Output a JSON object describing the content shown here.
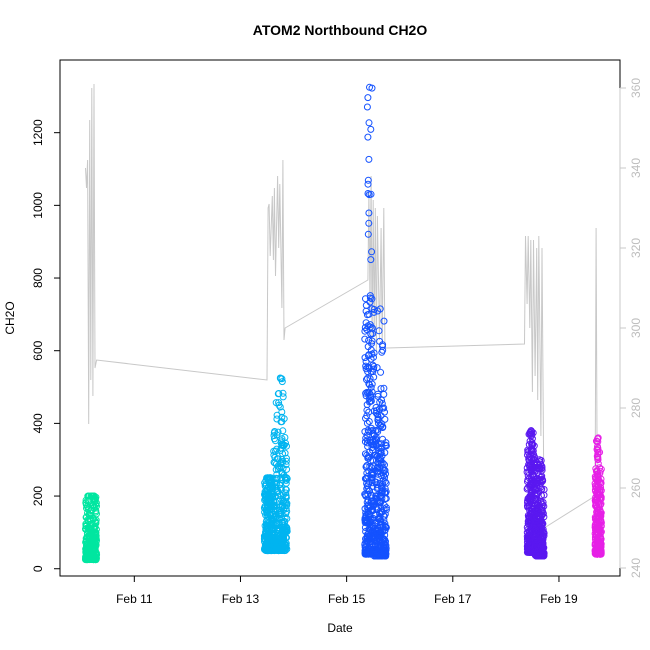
{
  "chart_data": {
    "type": "scatter",
    "title": "ATOM2 Northbound CH2O",
    "xlabel": "Date",
    "ylabel": "CH2O",
    "x_ticks": [
      "Feb 11",
      "Feb 13",
      "Feb 15",
      "Feb 17",
      "Feb 19"
    ],
    "x_tick_values": [
      11,
      13,
      15,
      17,
      19
    ],
    "xlim": [
      9.6,
      20.15
    ],
    "y_ticks": [
      0,
      200,
      400,
      600,
      800,
      1000,
      1200
    ],
    "ylim": [
      -20,
      1400
    ],
    "y2_ticks": [
      240,
      260,
      280,
      300,
      320,
      340,
      360
    ],
    "y2lim": [
      238,
      367
    ],
    "y2_color": "#c8c8c8",
    "grid": false,
    "series": [
      {
        "color": "#00e6a0",
        "segments": [
          {
            "x": [
              10.08,
              10.29
            ],
            "y_low": 25,
            "y_high": 200,
            "y_peak": 200
          }
        ]
      },
      {
        "color": "#00b4f0",
        "segments": [
          {
            "x": [
              13.45,
              13.62
            ],
            "y_low": 50,
            "y_high": 250,
            "y_peak": 250
          },
          {
            "x": [
              13.62,
              13.88
            ],
            "y_low": 50,
            "y_high": 380,
            "y_peak": 525
          }
        ]
      },
      {
        "color": "#1452ff",
        "segments": [
          {
            "x": [
              15.34,
              15.52
            ],
            "y_low": 40,
            "y_high": 750,
            "y_peak": 1325
          },
          {
            "x": [
              15.52,
              15.75
            ],
            "y_low": 35,
            "y_high": 450,
            "y_peak": 715
          }
        ]
      },
      {
        "color": "#5a18f0",
        "segments": [
          {
            "x": [
              18.4,
              18.55
            ],
            "y_low": 45,
            "y_high": 340,
            "y_peak": 380
          },
          {
            "x": [
              18.55,
              18.72
            ],
            "y_low": 35,
            "y_high": 250,
            "y_peak": 300
          }
        ]
      },
      {
        "color": "#e620e6",
        "segments": [
          {
            "x": [
              19.68,
              19.8
            ],
            "y_low": 40,
            "y_high": 280,
            "y_peak": 360
          }
        ]
      }
    ],
    "altitude_line": {
      "color": "#c8c8c8",
      "axis": "right",
      "points": [
        [
          10.08,
          340
        ],
        [
          10.1,
          335
        ],
        [
          10.12,
          342
        ],
        [
          10.14,
          276
        ],
        [
          10.16,
          352
        ],
        [
          10.18,
          287
        ],
        [
          10.2,
          360
        ],
        [
          10.22,
          283
        ],
        [
          10.24,
          361
        ],
        [
          10.26,
          290
        ],
        [
          10.29,
          292
        ],
        [
          13.5,
          287
        ],
        [
          13.52,
          330
        ],
        [
          13.54,
          331
        ],
        [
          13.56,
          318
        ],
        [
          13.6,
          333
        ],
        [
          13.62,
          317
        ],
        [
          13.64,
          335
        ],
        [
          13.66,
          313
        ],
        [
          13.7,
          338
        ],
        [
          13.72,
          320
        ],
        [
          13.74,
          336
        ],
        [
          13.78,
          305
        ],
        [
          13.8,
          342
        ],
        [
          13.82,
          297
        ],
        [
          13.84,
          300
        ],
        [
          15.4,
          312
        ],
        [
          15.42,
          334
        ],
        [
          15.44,
          305
        ],
        [
          15.46,
          338
        ],
        [
          15.48,
          296
        ],
        [
          15.5,
          332
        ],
        [
          15.52,
          298
        ],
        [
          15.54,
          330
        ],
        [
          15.56,
          294
        ],
        [
          15.58,
          328
        ],
        [
          15.62,
          297
        ],
        [
          15.65,
          325
        ],
        [
          15.67,
          296
        ],
        [
          15.7,
          330
        ],
        [
          15.72,
          295
        ],
        [
          15.76,
          295
        ],
        [
          18.35,
          296
        ],
        [
          18.37,
          323
        ],
        [
          18.4,
          306
        ],
        [
          18.42,
          323
        ],
        [
          18.45,
          300
        ],
        [
          18.47,
          322
        ],
        [
          18.5,
          284
        ],
        [
          18.52,
          322
        ],
        [
          18.55,
          288
        ],
        [
          18.58,
          320
        ],
        [
          18.6,
          282
        ],
        [
          18.62,
          323
        ],
        [
          18.66,
          273
        ],
        [
          18.68,
          320
        ],
        [
          18.72,
          250
        ],
        [
          19.68,
          258
        ],
        [
          19.7,
          325
        ],
        [
          19.72,
          260
        ],
        [
          19.75,
          265
        ]
      ]
    }
  }
}
